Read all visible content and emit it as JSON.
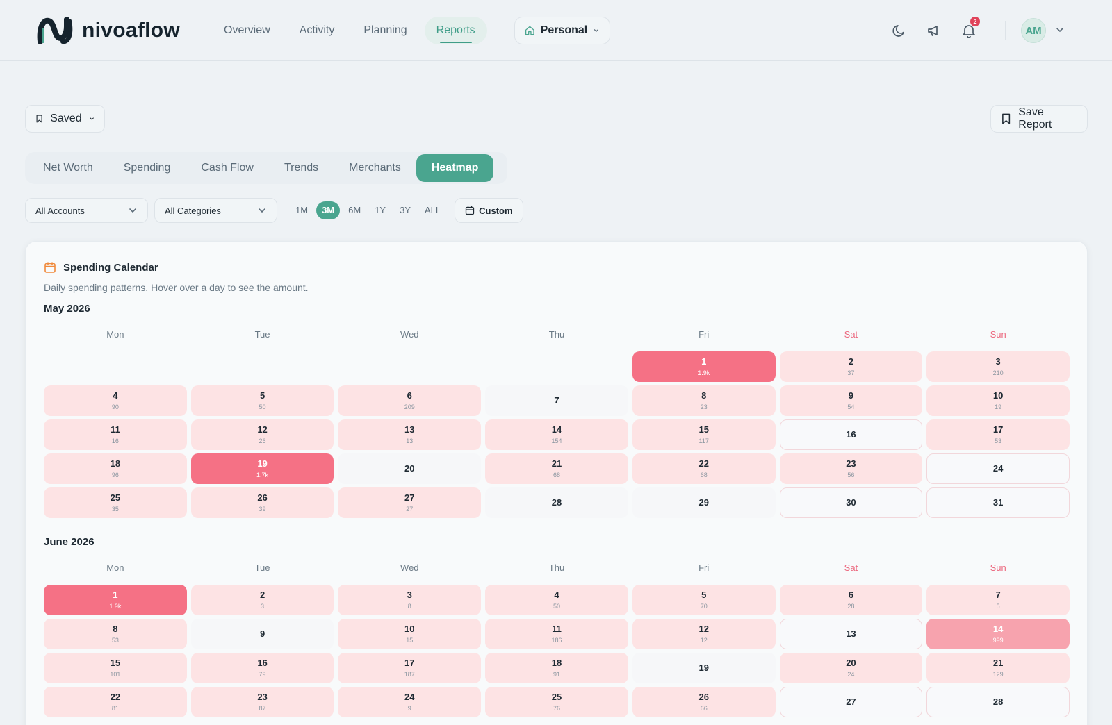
{
  "header": {
    "brand": "nivoaflow",
    "nav": [
      {
        "label": "Overview",
        "active": false
      },
      {
        "label": "Activity",
        "active": false
      },
      {
        "label": "Planning",
        "active": false
      },
      {
        "label": "Reports",
        "active": true
      }
    ],
    "workspace": "Personal",
    "notification_count": "2",
    "avatar_initials": "AM"
  },
  "toolbar": {
    "saved_label": "Saved",
    "save_report_label": "Save Report"
  },
  "tabs": [
    {
      "label": "Net Worth",
      "active": false
    },
    {
      "label": "Spending",
      "active": false
    },
    {
      "label": "Cash Flow",
      "active": false
    },
    {
      "label": "Trends",
      "active": false
    },
    {
      "label": "Merchants",
      "active": false
    },
    {
      "label": "Heatmap",
      "active": true
    }
  ],
  "filters": {
    "accounts": "All Accounts",
    "categories": "All Categories",
    "ranges": [
      "1M",
      "3M",
      "6M",
      "1Y",
      "3Y",
      "ALL"
    ],
    "active_range": "3M",
    "custom_label": "Custom"
  },
  "card": {
    "title": "Spending Calendar",
    "subtitle": "Daily spending patterns. Hover over a day to see the amount."
  },
  "weekdays": [
    "Mon",
    "Tue",
    "Wed",
    "Thu",
    "Fri",
    "Sat",
    "Sun"
  ],
  "colors": {
    "accent": "#4aa58f",
    "high": "#f57185",
    "medium": "#f7a3ae",
    "low": "#fde3e4",
    "weekend_label": "#ec6a80"
  },
  "months": [
    {
      "title": "May 2026",
      "offset": 4,
      "days": [
        {
          "d": "1",
          "v": "1.9k",
          "level": "hi"
        },
        {
          "d": "2",
          "v": "37"
        },
        {
          "d": "3",
          "v": "210"
        },
        {
          "d": "4",
          "v": "90"
        },
        {
          "d": "5",
          "v": "50"
        },
        {
          "d": "6",
          "v": "209"
        },
        {
          "d": "7",
          "v": ""
        },
        {
          "d": "8",
          "v": "23"
        },
        {
          "d": "9",
          "v": "54"
        },
        {
          "d": "10",
          "v": "19"
        },
        {
          "d": "11",
          "v": "16"
        },
        {
          "d": "12",
          "v": "26"
        },
        {
          "d": "13",
          "v": "13"
        },
        {
          "d": "14",
          "v": "154"
        },
        {
          "d": "15",
          "v": "117"
        },
        {
          "d": "16",
          "v": ""
        },
        {
          "d": "17",
          "v": "53"
        },
        {
          "d": "18",
          "v": "96"
        },
        {
          "d": "19",
          "v": "1.7k",
          "level": "hi"
        },
        {
          "d": "20",
          "v": ""
        },
        {
          "d": "21",
          "v": "68"
        },
        {
          "d": "22",
          "v": "68"
        },
        {
          "d": "23",
          "v": "56"
        },
        {
          "d": "24",
          "v": ""
        },
        {
          "d": "25",
          "v": "35"
        },
        {
          "d": "26",
          "v": "39"
        },
        {
          "d": "27",
          "v": "27"
        },
        {
          "d": "28",
          "v": ""
        },
        {
          "d": "29",
          "v": ""
        },
        {
          "d": "30",
          "v": ""
        },
        {
          "d": "31",
          "v": ""
        }
      ]
    },
    {
      "title": "June 2026",
      "offset": 0,
      "days": [
        {
          "d": "1",
          "v": "1.9k",
          "level": "hi"
        },
        {
          "d": "2",
          "v": "3"
        },
        {
          "d": "3",
          "v": "8"
        },
        {
          "d": "4",
          "v": "50"
        },
        {
          "d": "5",
          "v": "70"
        },
        {
          "d": "6",
          "v": "28"
        },
        {
          "d": "7",
          "v": "5"
        },
        {
          "d": "8",
          "v": "53"
        },
        {
          "d": "9",
          "v": ""
        },
        {
          "d": "10",
          "v": "15"
        },
        {
          "d": "11",
          "v": "186"
        },
        {
          "d": "12",
          "v": "12"
        },
        {
          "d": "13",
          "v": ""
        },
        {
          "d": "14",
          "v": "999",
          "level": "mid"
        },
        {
          "d": "15",
          "v": "101"
        },
        {
          "d": "16",
          "v": "79"
        },
        {
          "d": "17",
          "v": "187"
        },
        {
          "d": "18",
          "v": "91"
        },
        {
          "d": "19",
          "v": ""
        },
        {
          "d": "20",
          "v": "24"
        },
        {
          "d": "21",
          "v": "129"
        },
        {
          "d": "22",
          "v": "81"
        },
        {
          "d": "23",
          "v": "87"
        },
        {
          "d": "24",
          "v": "9"
        },
        {
          "d": "25",
          "v": "76"
        },
        {
          "d": "26",
          "v": "66"
        },
        {
          "d": "27",
          "v": ""
        },
        {
          "d": "28",
          "v": ""
        }
      ]
    }
  ]
}
